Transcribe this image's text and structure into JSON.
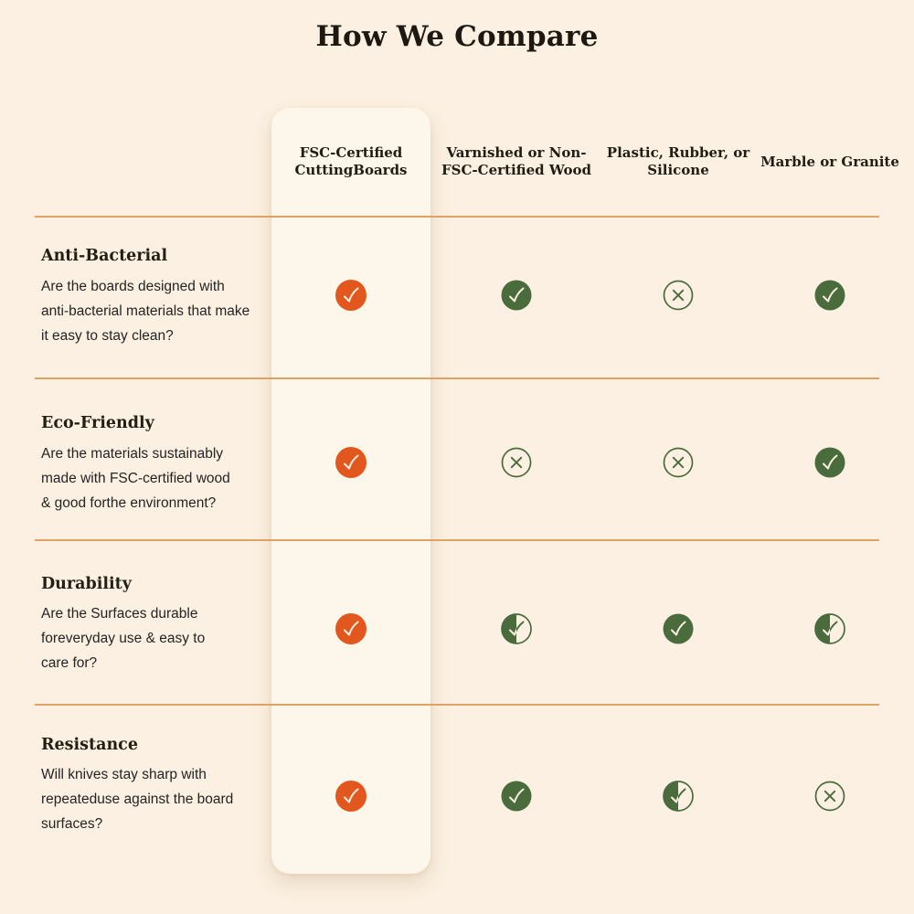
{
  "page": {
    "title": "How We Compare"
  },
  "colors": {
    "background": "#FBF0E1",
    "card_background": "#FDF6EA",
    "divider": "#E0A262",
    "orange": "#E2571E",
    "green": "#4A6C3D",
    "check_stroke_on_fill": "#FBF0E1",
    "heading_text": "#1D1810",
    "body_text": "#242424"
  },
  "icon_legend": {
    "check-filled-orange": "checkmark in solid orange circle",
    "check-filled-green": "checkmark in solid green circle",
    "x-outline-green": "x mark in outlined green circle",
    "check-half-green": "checkmark in half-filled green circle"
  },
  "columns": [
    {
      "label": "FSC-Certified\nCuttingBoards",
      "highlighted": true
    },
    {
      "label": "Varnished or Non-\nFSC-Certified Wood",
      "highlighted": false
    },
    {
      "label": "Plastic, Rubber, or\nSilicone",
      "highlighted": false
    },
    {
      "label": "Marble or Granite",
      "highlighted": false
    }
  ],
  "rows": [
    {
      "title": "Anti-Bacterial",
      "description": "Are the boards designed with\nanti-bacterial materials that make\nit easy to stay clean?",
      "cells": [
        "check-filled-orange",
        "check-filled-green",
        "x-outline-green",
        "check-filled-green"
      ]
    },
    {
      "title": "Eco-Friendly",
      "description": "Are the materials sustainably\nmade with FSC-certified wood\n& good forthe environment?",
      "cells": [
        "check-filled-orange",
        "x-outline-green",
        "x-outline-green",
        "check-filled-green"
      ]
    },
    {
      "title": "Durability",
      "description": "Are the Surfaces durable\nforeveryday use & easy to\ncare for?",
      "cells": [
        "check-filled-orange",
        "check-half-green",
        "check-filled-green",
        "check-half-green"
      ]
    },
    {
      "title": "Resistance",
      "description": "Will knives stay sharp with\nrepeateduse against the board\nsurfaces?",
      "cells": [
        "check-filled-orange",
        "check-filled-green",
        "check-half-green",
        "x-outline-green"
      ]
    }
  ]
}
